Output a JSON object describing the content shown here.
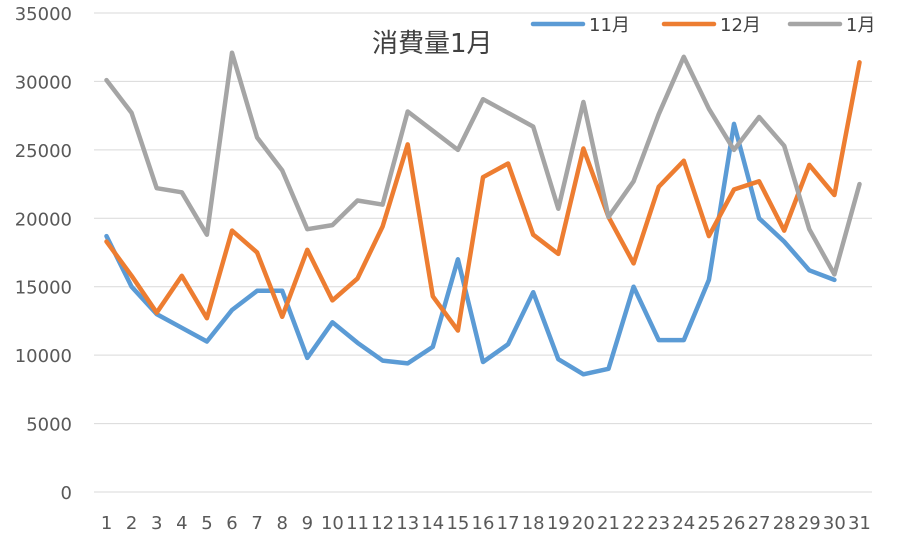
{
  "chart_data": {
    "type": "line",
    "title": "消費量1月",
    "xlabel": "",
    "ylabel": "",
    "categories": [
      "1",
      "2",
      "3",
      "4",
      "5",
      "6",
      "7",
      "8",
      "9",
      "10",
      "11",
      "12",
      "13",
      "14",
      "15",
      "16",
      "17",
      "18",
      "19",
      "20",
      "21",
      "22",
      "23",
      "24",
      "25",
      "26",
      "27",
      "28",
      "29",
      "30",
      "31"
    ],
    "ylim": [
      0,
      35000
    ],
    "y_ticks": [
      "0",
      "5000",
      "10000",
      "15000",
      "20000",
      "25000",
      "30000",
      "35000"
    ],
    "grid": true,
    "legend_position": "top-right",
    "series": [
      {
        "name": "11月",
        "color": "#5B9BD5",
        "values": [
          18700,
          15000,
          13000,
          12000,
          11000,
          13300,
          14700,
          14700,
          9800,
          12400,
          10900,
          9600,
          9400,
          10600,
          17000,
          9500,
          10800,
          14600,
          9700,
          8600,
          9000,
          15000,
          11100,
          11100,
          15500,
          26900,
          20000,
          18300,
          16200,
          15500,
          null
        ]
      },
      {
        "name": "12月",
        "color": "#ED7D31",
        "values": [
          18300,
          15800,
          13100,
          15800,
          12700,
          19100,
          17500,
          12800,
          17700,
          14000,
          15600,
          19400,
          25400,
          14300,
          11800,
          23000,
          24000,
          18800,
          17400,
          25100,
          20100,
          16700,
          22300,
          24200,
          18700,
          22100,
          22700,
          19100,
          23900,
          21700,
          31400
        ]
      },
      {
        "name": "1月",
        "color": "#A5A5A5",
        "values": [
          30100,
          27700,
          22200,
          21900,
          18800,
          32100,
          25900,
          23500,
          19200,
          19500,
          21300,
          21000,
          27800,
          26400,
          25000,
          28700,
          27700,
          26700,
          20700,
          28500,
          20100,
          22700,
          27600,
          31800,
          28000,
          25000,
          27400,
          25300,
          19200,
          15900,
          22500
        ]
      }
    ]
  }
}
